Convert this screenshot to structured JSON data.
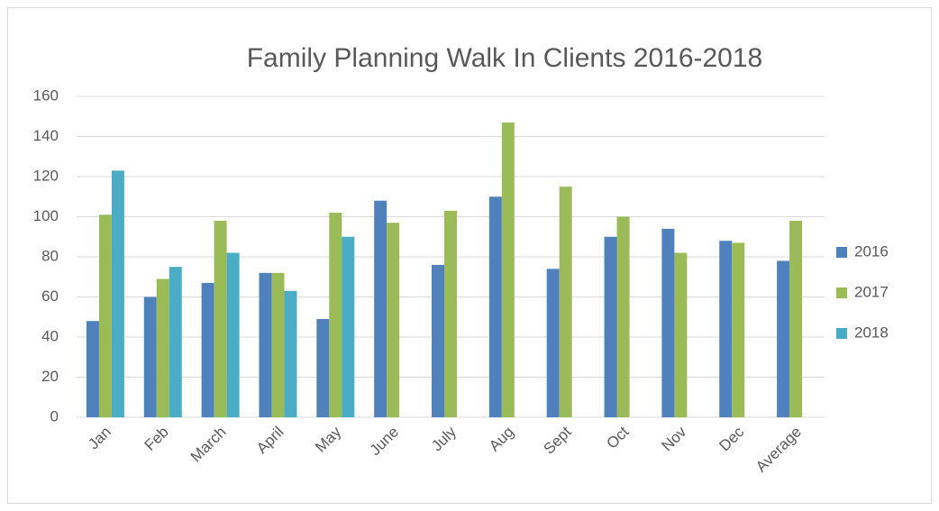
{
  "chart_data": {
    "type": "bar",
    "title": "Family Planning Walk In Clients 2016-2018",
    "categories": [
      "Jan",
      "Feb",
      "March",
      "April",
      "May",
      "June",
      "July",
      "Aug",
      "Sept",
      "Oct",
      "Nov",
      "Dec",
      "Average"
    ],
    "series": [
      {
        "name": "2016",
        "color": "#4f81bd",
        "values": [
          48,
          60,
          67,
          72,
          49,
          108,
          76,
          110,
          74,
          90,
          94,
          88,
          78
        ]
      },
      {
        "name": "2017",
        "color": "#9bbb59",
        "values": [
          101,
          69,
          98,
          72,
          102,
          97,
          103,
          147,
          115,
          100,
          82,
          87,
          98
        ]
      },
      {
        "name": "2018",
        "color": "#4bacc6",
        "values": [
          123,
          75,
          82,
          63,
          90,
          null,
          null,
          null,
          null,
          null,
          null,
          null,
          null
        ]
      }
    ],
    "ylim": [
      0,
      160
    ],
    "yticks": [
      0,
      20,
      40,
      60,
      80,
      100,
      120,
      140,
      160
    ],
    "grid": true,
    "legend": "right"
  }
}
